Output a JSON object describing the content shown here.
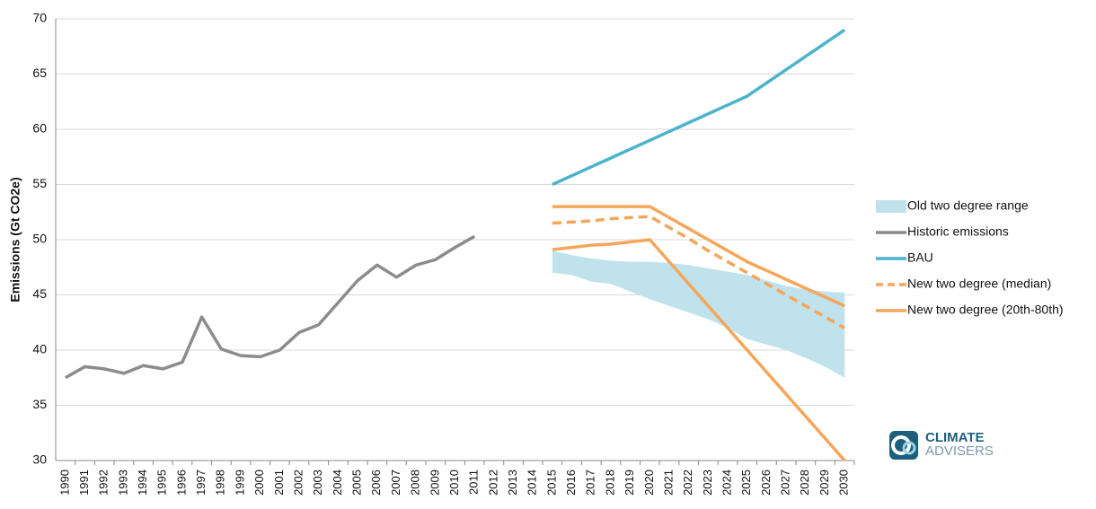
{
  "chart_data": {
    "type": "line",
    "y_label": "Emissions (Gt CO2e)",
    "categories": [
      "1990",
      "1991",
      "1992",
      "1993",
      "1994",
      "1995",
      "1996",
      "1997",
      "1998",
      "1999",
      "2000",
      "2001",
      "2002",
      "2003",
      "2004",
      "2005",
      "2006",
      "2007",
      "2008",
      "2009",
      "2010",
      "2011",
      "2012",
      "2013",
      "2014",
      "2015",
      "2016",
      "2017",
      "2018",
      "2019",
      "2020",
      "2021",
      "2022",
      "2023",
      "2024",
      "2025",
      "2026",
      "2027",
      "2028",
      "2029",
      "2030"
    ],
    "ylim": [
      30,
      70
    ],
    "yticks": [
      30,
      35,
      40,
      45,
      50,
      55,
      60,
      65,
      70
    ],
    "grid": true,
    "series": [
      {
        "name": "Old two degree range",
        "color": "#bfe2ec",
        "style": "area",
        "low": [
          null,
          null,
          null,
          null,
          null,
          null,
          null,
          null,
          null,
          null,
          null,
          null,
          null,
          null,
          null,
          null,
          null,
          null,
          null,
          null,
          null,
          null,
          null,
          null,
          null,
          47,
          46.8,
          46.2,
          46,
          45.3,
          44.6,
          44,
          43.4,
          42.8,
          42,
          41,
          40.5,
          40,
          39.3,
          38.5,
          37.5
        ],
        "high": [
          null,
          null,
          null,
          null,
          null,
          null,
          null,
          null,
          null,
          null,
          null,
          null,
          null,
          null,
          null,
          null,
          null,
          null,
          null,
          null,
          null,
          null,
          null,
          null,
          null,
          49,
          48.6,
          48.3,
          48.1,
          48,
          48,
          47.9,
          47.7,
          47.4,
          47.1,
          46.8,
          46.3,
          45.8,
          45.5,
          45.3,
          45.2
        ]
      },
      {
        "name": "Historic emissions",
        "color": "#8c8c8c",
        "style": "line",
        "values": [
          37.5,
          38.5,
          38.3,
          37.9,
          38.6,
          38.3,
          38.9,
          43,
          40.1,
          39.5,
          39.4,
          40,
          41.6,
          42.3,
          44.3,
          46.3,
          47.7,
          46.6,
          47.7,
          48.2,
          49.3,
          50.3,
          null,
          null,
          null,
          null,
          null,
          null,
          null,
          null,
          null,
          null,
          null,
          null,
          null,
          null,
          null,
          null,
          null,
          null,
          null
        ]
      },
      {
        "name": "BAU",
        "color": "#4cb3cc",
        "style": "line",
        "values": [
          null,
          null,
          null,
          null,
          null,
          null,
          null,
          null,
          null,
          null,
          null,
          null,
          null,
          null,
          null,
          null,
          null,
          null,
          null,
          null,
          null,
          null,
          null,
          null,
          null,
          55,
          55.8,
          56.6,
          57.4,
          58.2,
          59,
          59.8,
          60.6,
          61.4,
          62.2,
          63,
          64.2,
          65.4,
          66.6,
          67.8,
          69
        ]
      },
      {
        "name": "New two degree (median)",
        "color": "#f5a65b",
        "style": "dashed",
        "values": [
          null,
          null,
          null,
          null,
          null,
          null,
          null,
          null,
          null,
          null,
          null,
          null,
          null,
          null,
          null,
          null,
          null,
          null,
          null,
          null,
          null,
          null,
          null,
          null,
          null,
          51.5,
          51.6,
          51.7,
          51.9,
          52,
          52.1,
          51.1,
          50.1,
          49,
          48,
          47,
          46,
          45,
          44,
          43,
          42
        ]
      },
      {
        "name": "New two degree (20th-80th)",
        "color": "#f5a65b",
        "style": "range-lines",
        "low": [
          null,
          null,
          null,
          null,
          null,
          null,
          null,
          null,
          null,
          null,
          null,
          null,
          null,
          null,
          null,
          null,
          null,
          null,
          null,
          null,
          null,
          null,
          null,
          null,
          null,
          49.1,
          49.3,
          49.5,
          49.6,
          49.8,
          50,
          48,
          46,
          44,
          42,
          40,
          38,
          36,
          34,
          32,
          30
        ],
        "high": [
          null,
          null,
          null,
          null,
          null,
          null,
          null,
          null,
          null,
          null,
          null,
          null,
          null,
          null,
          null,
          null,
          null,
          null,
          null,
          null,
          null,
          null,
          null,
          null,
          null,
          53,
          53,
          53,
          53,
          53,
          53,
          52,
          51,
          50,
          49,
          48,
          47.2,
          46.4,
          45.6,
          44.8,
          44
        ]
      }
    ]
  },
  "logo": {
    "line1": "CLIMATE",
    "line2": "ADVISERS"
  }
}
